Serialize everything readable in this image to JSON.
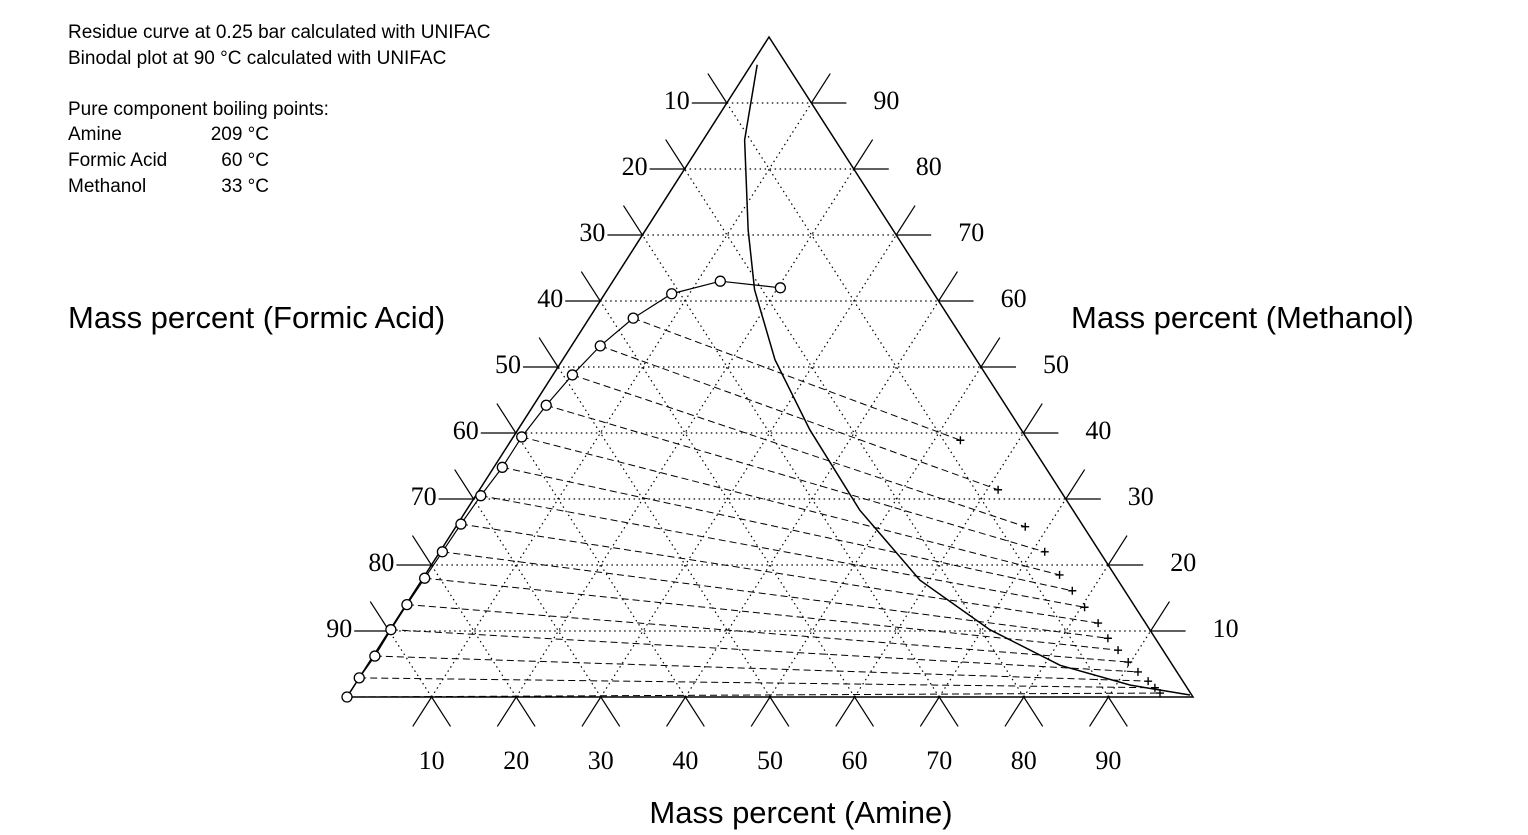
{
  "chart_data": {
    "type": "ternary",
    "notes": [
      "Residue curve at 0.25 bar calculated with UNIFAC",
      "Binodal plot at 90 °C calculated with UNIFAC"
    ],
    "boiling_title": "Pure component boiling points:",
    "boiling_points": [
      {
        "name": "Amine",
        "label": "209 °C"
      },
      {
        "name": "Formic Acid",
        "label": "60 °C"
      },
      {
        "name": "Methanol",
        "label": "33 °C"
      }
    ],
    "left_axis_label": "Mass percent (Formic Acid)",
    "right_axis_label": "Mass percent (Methanol)",
    "bottom_axis_label": "Mass percent (Amine)",
    "amine_lim": [
      0,
      100
    ],
    "methanol_lim": [
      0,
      100
    ],
    "formic_lim": [
      0,
      100
    ],
    "amine_ticks": [
      10,
      20,
      30,
      40,
      50,
      60,
      70,
      80,
      90
    ],
    "methanol_ticks": [
      10,
      20,
      30,
      40,
      50,
      60,
      70,
      80,
      90
    ],
    "formic_ticks": [
      10,
      20,
      30,
      40,
      50,
      60,
      70,
      80,
      90
    ],
    "grid": true,
    "series": [
      {
        "marker": "circle",
        "color": "#000000",
        "amine": [
          0,
          0,
          0.2,
          0.1,
          0.1,
          0.2,
          0.3,
          0.4,
          0.6,
          1.0,
          1.0,
          1.5,
          2.3,
          3.4,
          5.2,
          7.9,
          12.7,
          20.3
        ],
        "methanol": [
          0,
          2.9,
          6.2,
          10.2,
          14.0,
          18.0,
          22.0,
          26.2,
          30.5,
          34.8,
          39.4,
          44.2,
          48.8,
          53.2,
          57.4,
          61.1,
          63.0,
          62.0
        ]
      },
      {
        "marker": "cross",
        "color": "#000000",
        "amine": [
          53.1,
          61.3,
          67.3,
          71.5,
          75.0,
          77.7,
          80.4,
          83.2,
          85.5,
          87.6,
          89.7,
          91.6,
          93.5,
          94.8,
          95.8
        ],
        "methanol": [
          38.9,
          31.4,
          25.8,
          22.0,
          18.5,
          16.1,
          13.6,
          11.2,
          8.9,
          7.1,
          5.3,
          3.8,
          2.4,
          1.4,
          0.6
        ]
      },
      {
        "marker": "line",
        "color": "#000000",
        "amine": [
          0.7,
          4.9,
          12.1,
          17.4,
          25.1,
          34.5,
          46.5,
          58.9,
          70.9,
          81.9,
          91.7,
          99.5
        ],
        "methanol": [
          95.8,
          84.4,
          70.8,
          61.7,
          51.1,
          40.5,
          28.3,
          17.7,
          10.2,
          4.8,
          1.8,
          0.3
        ]
      }
    ]
  }
}
